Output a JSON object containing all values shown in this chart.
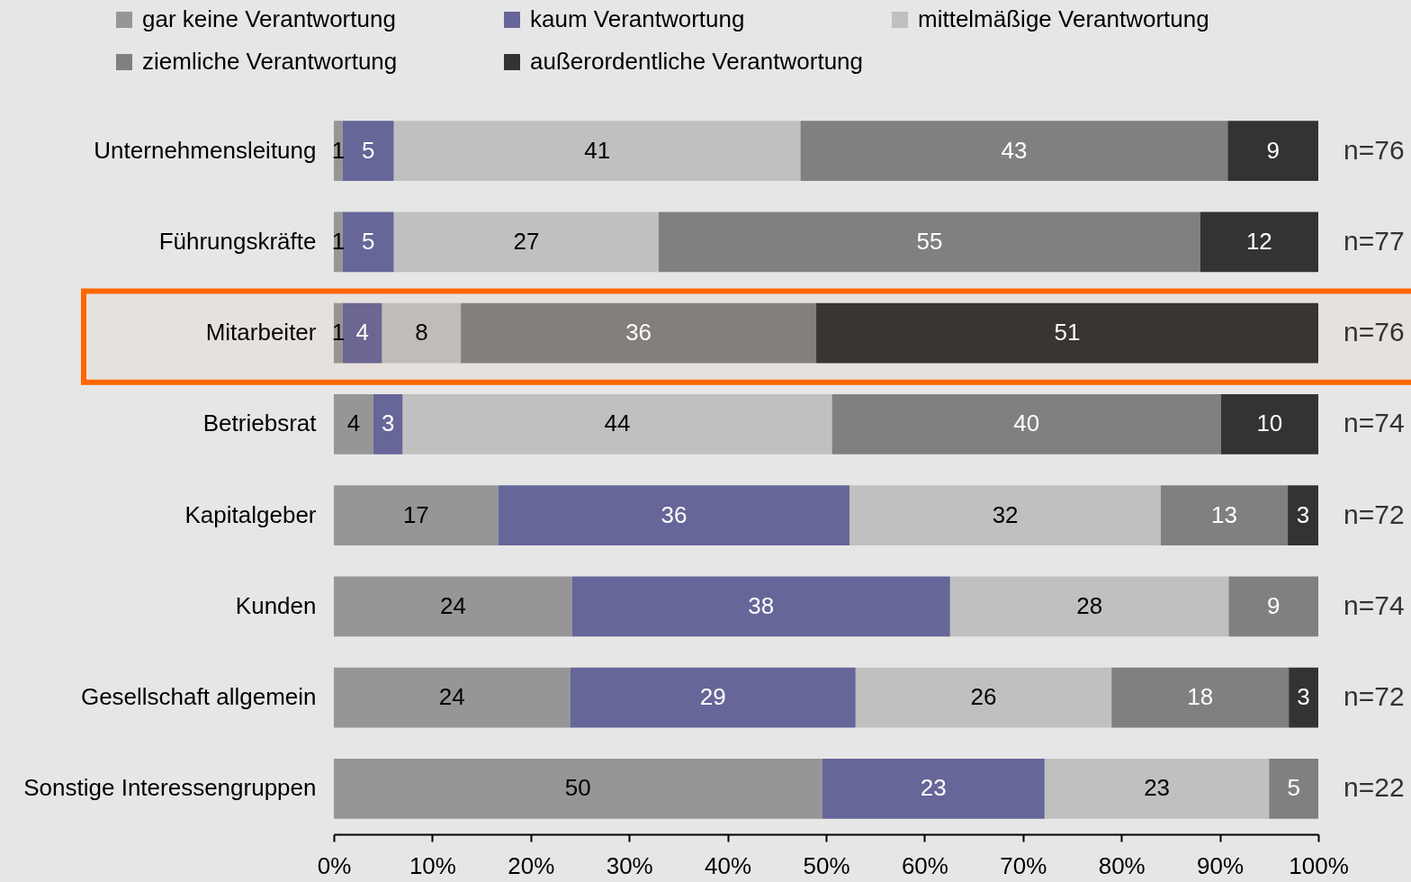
{
  "chart_data": {
    "type": "bar",
    "orientation": "horizontal",
    "stacked": true,
    "categories": [
      "Unternehmensleitung",
      "Führungskräfte",
      "Mitarbeiter",
      "Betriebsrat",
      "Kapitalgeber",
      "Kunden",
      "Gesellschaft allgemein",
      "Sonstige Interessengruppen"
    ],
    "series": [
      {
        "name": "gar keine Verantwortung",
        "color": "#969696",
        "values": [
          0.9,
          0.9,
          0.9,
          4.0,
          16.7,
          24.2,
          24.0,
          49.6
        ],
        "value_labels": [
          "1",
          "1",
          "1",
          "4",
          "17",
          "24",
          "24",
          "50"
        ]
      },
      {
        "name": "kaum Verantwortung",
        "color": "#666699",
        "values": [
          5.2,
          5.2,
          4.0,
          3.0,
          35.7,
          38.4,
          29.0,
          22.6
        ],
        "value_labels": [
          "5",
          "5",
          "4",
          "3",
          "36",
          "38",
          "29",
          "23"
        ]
      },
      {
        "name": "mittelmäßige Verantwortung",
        "color": "#c0c0c0",
        "values": [
          41.3,
          26.9,
          8.0,
          43.6,
          31.6,
          28.3,
          26.0,
          22.8
        ],
        "value_labels": [
          "41",
          "27",
          "8",
          "44",
          "32",
          "28",
          "26",
          "23"
        ]
      },
      {
        "name": "ziemliche Verantwortung",
        "color": "#808080",
        "values": [
          43.4,
          55.0,
          36.1,
          39.5,
          12.9,
          9.1,
          18.0,
          5.0
        ],
        "value_labels": [
          "43",
          "55",
          "36",
          "40",
          "13",
          "9",
          "18",
          "5"
        ]
      },
      {
        "name": "außerordentliche Verantwortung",
        "color": "#333333",
        "values": [
          9.2,
          12.0,
          51.0,
          9.9,
          3.1,
          null,
          3.0,
          null
        ],
        "value_labels": [
          "9",
          "12",
          "51",
          "10",
          "3",
          null,
          "3",
          null
        ]
      }
    ],
    "xlim": [
      0,
      100
    ],
    "xticks": [
      {
        "value": 0,
        "label": "0%"
      },
      {
        "value": 10,
        "label": "10%"
      },
      {
        "value": 20,
        "label": "20%"
      },
      {
        "value": 30,
        "label": "30%"
      },
      {
        "value": 40,
        "label": "40%"
      },
      {
        "value": 50,
        "label": "50%"
      },
      {
        "value": 60,
        "label": "60%"
      },
      {
        "value": 70,
        "label": "70%"
      },
      {
        "value": 80,
        "label": "80%"
      },
      {
        "value": 90,
        "label": "90%"
      },
      {
        "value": 100,
        "label": "100%"
      }
    ],
    "legend": "top",
    "annotations": [
      "n=76",
      "n=77",
      "n=76",
      "n=74",
      "n=72",
      "n=74",
      "n=72",
      "n=22"
    ],
    "bands": [
      {
        "axis": "y",
        "from": "Mitarbeiter",
        "to": "Mitarbeiter",
        "color": "#ff6600"
      }
    ]
  }
}
